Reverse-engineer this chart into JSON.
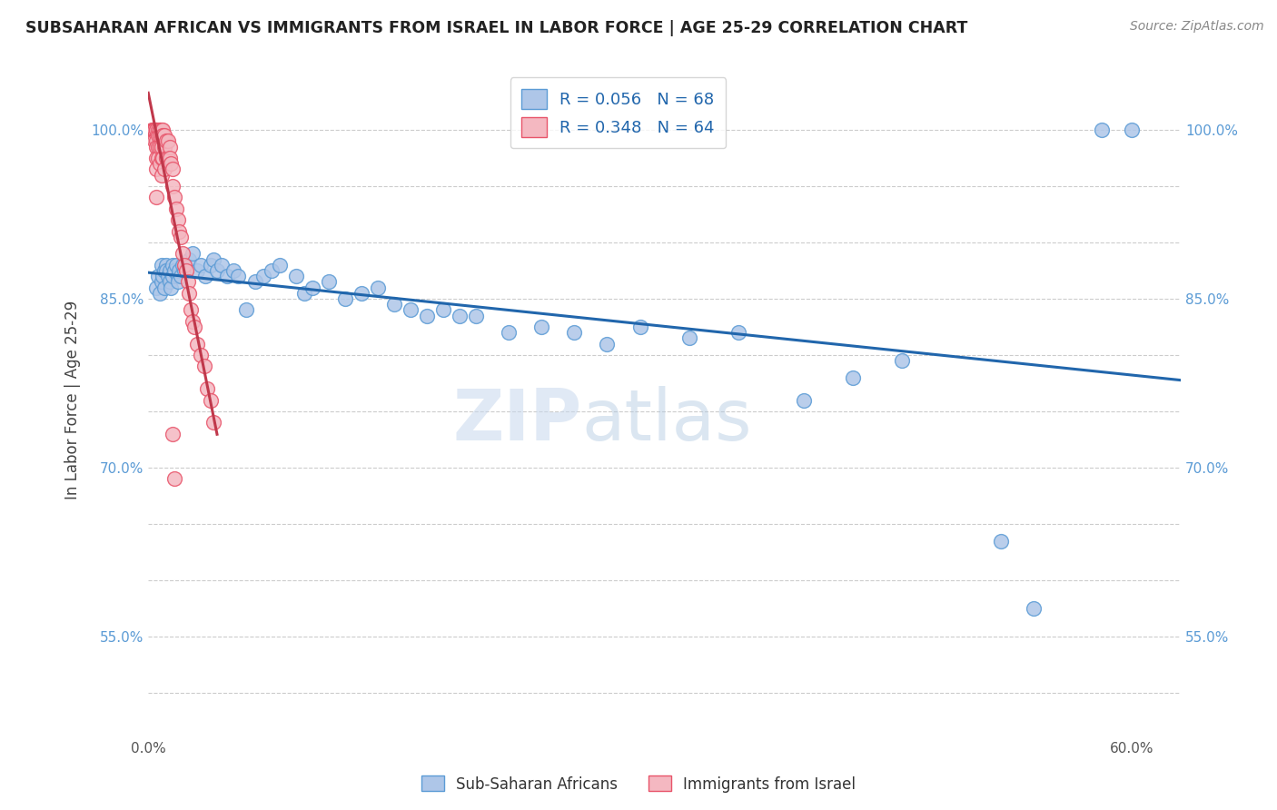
{
  "title": "SUBSAHARAN AFRICAN VS IMMIGRANTS FROM ISRAEL IN LABOR FORCE | AGE 25-29 CORRELATION CHART",
  "source": "Source: ZipAtlas.com",
  "ylabel": "In Labor Force | Age 25-29",
  "xlim": [
    0.0,
    0.63
  ],
  "ylim": [
    0.46,
    1.06
  ],
  "blue_R": 0.056,
  "blue_N": 68,
  "pink_R": 0.348,
  "pink_N": 64,
  "blue_color": "#aec6e8",
  "pink_color": "#f4b8c1",
  "blue_edge_color": "#5b9bd5",
  "pink_edge_color": "#e8546a",
  "blue_line_color": "#2166ac",
  "pink_line_color": "#c0384b",
  "watermark": "ZIPatlas",
  "blue_scatter_x": [
    0.005,
    0.006,
    0.007,
    0.008,
    0.008,
    0.009,
    0.01,
    0.01,
    0.011,
    0.011,
    0.012,
    0.013,
    0.013,
    0.014,
    0.015,
    0.015,
    0.016,
    0.017,
    0.018,
    0.018,
    0.019,
    0.02,
    0.021,
    0.022,
    0.025,
    0.027,
    0.03,
    0.032,
    0.035,
    0.038,
    0.04,
    0.042,
    0.045,
    0.048,
    0.052,
    0.055,
    0.06,
    0.065,
    0.07,
    0.075,
    0.08,
    0.09,
    0.095,
    0.1,
    0.11,
    0.12,
    0.13,
    0.14,
    0.15,
    0.16,
    0.17,
    0.18,
    0.19,
    0.2,
    0.22,
    0.24,
    0.26,
    0.28,
    0.3,
    0.33,
    0.36,
    0.4,
    0.43,
    0.46,
    0.52,
    0.54,
    0.582,
    0.6
  ],
  "blue_scatter_y": [
    0.86,
    0.87,
    0.855,
    0.88,
    0.865,
    0.87,
    0.875,
    0.86,
    0.88,
    0.875,
    0.87,
    0.875,
    0.865,
    0.86,
    0.88,
    0.87,
    0.875,
    0.88,
    0.87,
    0.865,
    0.875,
    0.87,
    0.88,
    0.875,
    0.885,
    0.89,
    0.875,
    0.88,
    0.87,
    0.88,
    0.885,
    0.875,
    0.88,
    0.87,
    0.875,
    0.87,
    0.84,
    0.865,
    0.87,
    0.875,
    0.88,
    0.87,
    0.855,
    0.86,
    0.865,
    0.85,
    0.855,
    0.86,
    0.845,
    0.84,
    0.835,
    0.84,
    0.835,
    0.835,
    0.82,
    0.825,
    0.82,
    0.81,
    0.825,
    0.815,
    0.82,
    0.76,
    0.78,
    0.795,
    0.635,
    0.575,
    1.0,
    1.0
  ],
  "pink_scatter_x": [
    0.002,
    0.003,
    0.003,
    0.003,
    0.004,
    0.004,
    0.004,
    0.005,
    0.005,
    0.005,
    0.005,
    0.005,
    0.005,
    0.005,
    0.006,
    0.006,
    0.006,
    0.006,
    0.007,
    0.007,
    0.007,
    0.007,
    0.007,
    0.008,
    0.008,
    0.008,
    0.008,
    0.008,
    0.009,
    0.009,
    0.009,
    0.01,
    0.01,
    0.01,
    0.011,
    0.011,
    0.012,
    0.012,
    0.013,
    0.013,
    0.014,
    0.015,
    0.015,
    0.016,
    0.017,
    0.018,
    0.019,
    0.02,
    0.021,
    0.022,
    0.023,
    0.024,
    0.025,
    0.026,
    0.027,
    0.028,
    0.03,
    0.032,
    0.034,
    0.036,
    0.038,
    0.04,
    0.015,
    0.016
  ],
  "pink_scatter_y": [
    1.0,
    1.0,
    1.0,
    1.0,
    1.0,
    1.0,
    0.99,
    1.0,
    1.0,
    0.99,
    0.985,
    0.975,
    0.965,
    0.94,
    1.0,
    0.995,
    0.985,
    0.975,
    1.0,
    1.0,
    0.995,
    0.985,
    0.97,
    1.0,
    0.995,
    0.985,
    0.975,
    0.96,
    1.0,
    0.995,
    0.975,
    0.995,
    0.985,
    0.965,
    0.99,
    0.975,
    0.99,
    0.975,
    0.985,
    0.975,
    0.97,
    0.965,
    0.95,
    0.94,
    0.93,
    0.92,
    0.91,
    0.905,
    0.89,
    0.88,
    0.875,
    0.865,
    0.855,
    0.84,
    0.83,
    0.825,
    0.81,
    0.8,
    0.79,
    0.77,
    0.76,
    0.74,
    0.73,
    0.69
  ]
}
